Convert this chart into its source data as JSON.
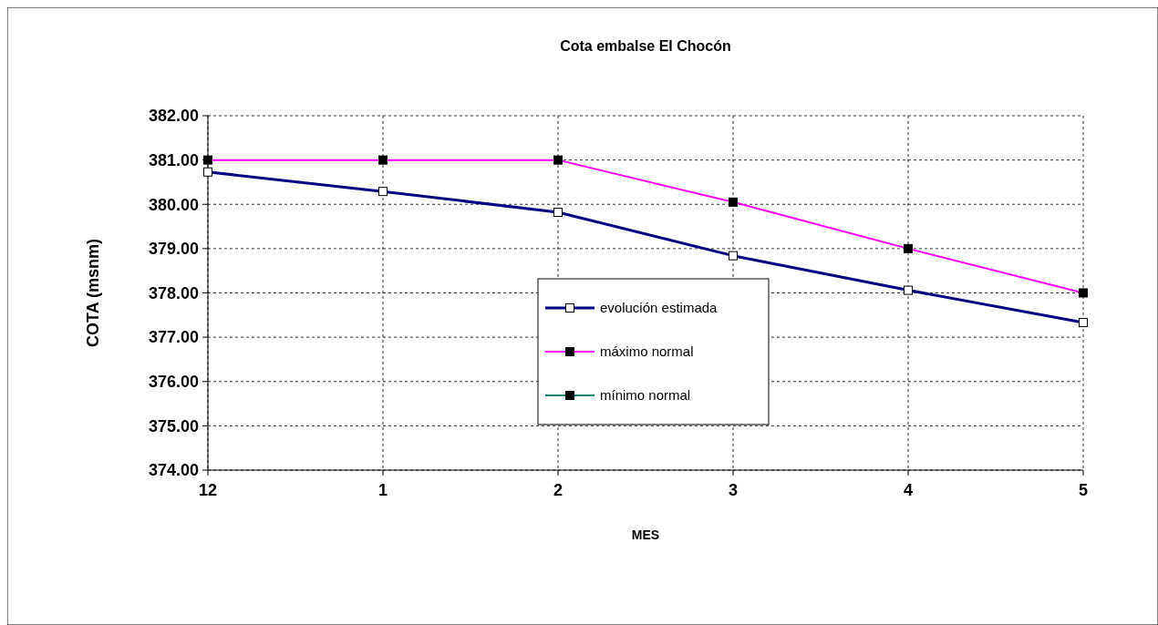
{
  "chart_data": {
    "type": "line",
    "title": "Cota embalse El Chocón",
    "xlabel": "MES",
    "ylabel": "COTA (msnm)",
    "categories": [
      "12",
      "1",
      "2",
      "3",
      "4",
      "5"
    ],
    "series": [
      {
        "name": "evolución estimada",
        "color": "#000080",
        "values": [
          380.73,
          380.29,
          379.82,
          378.84,
          378.06,
          377.33
        ]
      },
      {
        "name": "máximo normal",
        "color": "#ff00ff",
        "values": [
          381,
          381,
          381,
          380.05,
          379,
          378
        ]
      },
      {
        "name": "mínimo normal",
        "color": "#008080",
        "values": [
          null,
          null,
          null,
          null,
          null,
          null
        ]
      }
    ],
    "ylim": [
      374,
      382
    ],
    "yticks": [
      {
        "value": 374,
        "label": "374.00"
      },
      {
        "value": 375,
        "label": "375.00"
      },
      {
        "value": 376,
        "label": "376.00"
      },
      {
        "value": 377,
        "label": "377.00"
      },
      {
        "value": 378,
        "label": "378.00"
      },
      {
        "value": 379,
        "label": "379.00"
      },
      {
        "value": 380,
        "label": "380.00"
      },
      {
        "value": 381,
        "label": "381.00"
      },
      {
        "value": 382,
        "label": "382.00"
      }
    ],
    "grid": true,
    "legend": "center",
    "marker": "square"
  }
}
